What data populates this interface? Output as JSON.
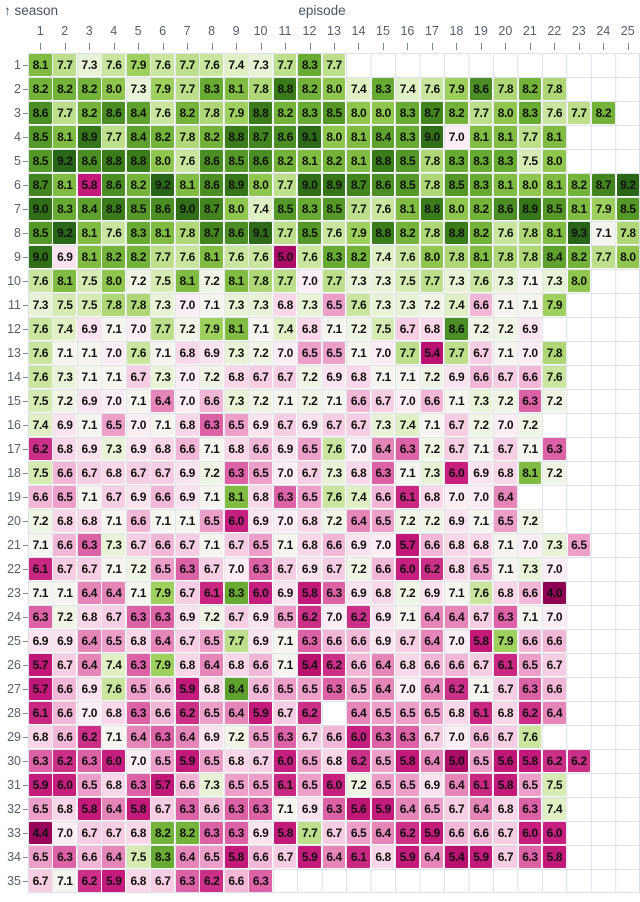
{
  "labels": {
    "season_arrow": "↑",
    "season": "season",
    "episode": "episode"
  },
  "colors": {
    "background": "#ffffff",
    "grid_line": "#dce1e7",
    "axis_word": "#49535e",
    "axis_number": "#56606b",
    "tick_mark": "#7d8791",
    "cell_text": "#101010",
    "high_green": "#276419",
    "mid_white": "#f7f5f2",
    "low_magenta": "#8e0152"
  },
  "chart_data": {
    "type": "heatmap",
    "x_axis": {
      "label": "episode",
      "ticks": [
        "1",
        "2",
        "3",
        "4",
        "5",
        "6",
        "7",
        "8",
        "9",
        "10",
        "11",
        "12",
        "13",
        "14",
        "15",
        "16",
        "17",
        "18",
        "19",
        "20",
        "21",
        "22",
        "23",
        "24",
        "25"
      ]
    },
    "y_axis": {
      "label": "season",
      "ticks": [
        "1",
        "2",
        "3",
        "4",
        "5",
        "6",
        "7",
        "8",
        "9",
        "10",
        "11",
        "12",
        "13",
        "14",
        "15",
        "16",
        "17",
        "18",
        "19",
        "20",
        "21",
        "22",
        "23",
        "24",
        "25",
        "26",
        "27",
        "28",
        "29",
        "30",
        "31",
        "32",
        "33",
        "34",
        "35"
      ]
    },
    "legend": "none",
    "grid": true,
    "value_format": "one_decimal",
    "colormap": {
      "stops": [
        [
          4.0,
          "#8e0152"
        ],
        [
          4.6,
          "#9c065c"
        ],
        [
          5.1,
          "#ae0d68"
        ],
        [
          5.6,
          "#c01677"
        ],
        [
          5.95,
          "#c51b7d"
        ],
        [
          6.12,
          "#c92983"
        ],
        [
          6.22,
          "#cc3088"
        ],
        [
          6.3,
          "#dd61a6"
        ],
        [
          6.42,
          "#e88cbc"
        ],
        [
          6.55,
          "#f0abd1"
        ],
        [
          6.7,
          "#f7cde3"
        ],
        [
          6.85,
          "#fadcec"
        ],
        [
          6.98,
          "#fcebf3"
        ],
        [
          7.08,
          "#f6f4f1"
        ],
        [
          7.22,
          "#eef5e2"
        ],
        [
          7.38,
          "#e2f1c8"
        ],
        [
          7.55,
          "#d0e9a7"
        ],
        [
          7.72,
          "#bade87"
        ],
        [
          7.92,
          "#9bce59"
        ],
        [
          8.1,
          "#7fbc41"
        ],
        [
          8.32,
          "#66a931"
        ],
        [
          8.55,
          "#4f9326"
        ],
        [
          8.8,
          "#3a7c1a"
        ],
        [
          9.05,
          "#2d6c16"
        ],
        [
          9.3,
          "#276419"
        ]
      ]
    },
    "values": [
      [
        8.1,
        7.7,
        7.3,
        7.6,
        7.9,
        7.6,
        7.7,
        7.6,
        7.4,
        7.3,
        7.7,
        8.3,
        7.7
      ],
      [
        8.2,
        8.2,
        8.2,
        8.0,
        7.3,
        7.9,
        7.7,
        8.3,
        8.1,
        7.8,
        8.8,
        8.2,
        8.0,
        7.4,
        8.3,
        7.4,
        7.6,
        7.9,
        8.6,
        7.8,
        8.2,
        7.8
      ],
      [
        8.6,
        7.7,
        8.2,
        8.6,
        8.4,
        7.6,
        8.2,
        7.8,
        7.9,
        8.8,
        8.2,
        8.3,
        8.5,
        8.0,
        8.0,
        8.3,
        8.7,
        8.2,
        7.7,
        8.0,
        8.3,
        7.6,
        7.7,
        8.2
      ],
      [
        8.5,
        8.1,
        8.9,
        7.7,
        8.4,
        8.2,
        7.8,
        8.2,
        8.8,
        8.7,
        8.6,
        9.1,
        8.0,
        8.1,
        8.4,
        8.3,
        9.0,
        7.0,
        8.1,
        8.1,
        7.7,
        8.1
      ],
      [
        8.5,
        9.2,
        8.6,
        8.8,
        8.8,
        8.0,
        7.6,
        8.6,
        8.5,
        8.6,
        8.2,
        8.1,
        8.2,
        8.1,
        8.8,
        8.5,
        7.8,
        8.3,
        8.3,
        8.3,
        7.5,
        8.0
      ],
      [
        8.7,
        8.1,
        5.8,
        8.6,
        8.2,
        9.2,
        8.1,
        8.6,
        8.9,
        8.0,
        7.7,
        9.0,
        8.9,
        8.7,
        8.6,
        8.5,
        7.8,
        8.5,
        8.3,
        8.1,
        8.0,
        8.1,
        8.2,
        8.7,
        9.2
      ],
      [
        9.0,
        8.3,
        8.4,
        8.8,
        8.5,
        8.6,
        9.0,
        8.7,
        8.0,
        7.4,
        8.5,
        8.3,
        8.5,
        7.7,
        7.6,
        8.1,
        8.8,
        8.0,
        8.2,
        8.6,
        8.9,
        8.5,
        8.1,
        7.9,
        8.5
      ],
      [
        8.5,
        9.2,
        8.1,
        7.6,
        8.3,
        8.1,
        7.8,
        8.7,
        8.6,
        9.1,
        7.7,
        8.5,
        7.6,
        7.9,
        8.8,
        8.2,
        7.8,
        8.8,
        8.2,
        7.6,
        7.8,
        8.1,
        9.3,
        7.1,
        7.8
      ],
      [
        9.0,
        6.9,
        8.1,
        8.2,
        8.2,
        7.7,
        7.6,
        8.1,
        7.6,
        7.6,
        5.0,
        7.6,
        8.3,
        8.2,
        7.4,
        7.6,
        8.0,
        7.8,
        8.1,
        7.8,
        7.8,
        8.4,
        8.2,
        7.7,
        8.0
      ],
      [
        7.6,
        8.1,
        7.5,
        8.0,
        7.2,
        7.5,
        8.1,
        7.2,
        8.1,
        7.8,
        7.7,
        7.0,
        7.7,
        7.3,
        7.3,
        7.5,
        7.7,
        7.3,
        7.6,
        7.3,
        7.1,
        7.3,
        8.0
      ],
      [
        7.3,
        7.5,
        7.5,
        7.8,
        7.8,
        7.3,
        7.0,
        7.1,
        7.3,
        7.3,
        6.8,
        7.3,
        6.5,
        7.6,
        7.3,
        7.3,
        7.2,
        7.4,
        6.6,
        7.1,
        7.1,
        7.9
      ],
      [
        7.6,
        7.4,
        6.9,
        7.1,
        7.0,
        7.7,
        7.2,
        7.9,
        8.1,
        7.1,
        7.4,
        6.8,
        7.1,
        7.2,
        7.5,
        6.7,
        6.8,
        8.6,
        7.2,
        7.2,
        6.9
      ],
      [
        7.6,
        7.1,
        7.1,
        7.0,
        7.6,
        7.1,
        6.8,
        6.9,
        7.3,
        7.2,
        7.0,
        6.5,
        6.5,
        7.1,
        7.0,
        7.7,
        5.4,
        7.7,
        6.7,
        7.1,
        7.0,
        7.8
      ],
      [
        7.6,
        7.3,
        7.1,
        7.1,
        6.7,
        7.3,
        7.0,
        7.2,
        6.8,
        6.7,
        6.7,
        7.2,
        6.9,
        6.8,
        7.1,
        7.1,
        7.2,
        6.9,
        6.6,
        6.7,
        6.6,
        7.6
      ],
      [
        7.5,
        7.2,
        6.9,
        7.0,
        7.1,
        6.4,
        7.0,
        6.6,
        7.3,
        7.2,
        7.1,
        7.2,
        7.1,
        6.6,
        6.7,
        7.0,
        6.6,
        7.1,
        7.3,
        7.2,
        6.3,
        7.2
      ],
      [
        7.4,
        6.9,
        7.1,
        6.5,
        7.0,
        7.1,
        6.8,
        6.3,
        6.5,
        6.9,
        6.7,
        6.9,
        6.7,
        6.7,
        7.3,
        7.4,
        7.1,
        6.7,
        7.2,
        7.0,
        7.2
      ],
      [
        6.2,
        6.8,
        6.9,
        7.3,
        6.9,
        6.8,
        6.6,
        7.1,
        6.8,
        6.6,
        6.9,
        6.5,
        7.6,
        7.0,
        6.4,
        6.3,
        7.2,
        6.7,
        7.1,
        6.7,
        7.1,
        6.3
      ],
      [
        7.5,
        6.6,
        6.7,
        6.8,
        6.7,
        6.7,
        6.9,
        7.2,
        6.3,
        6.5,
        7.0,
        6.7,
        7.3,
        6.8,
        6.3,
        7.1,
        7.3,
        6.0,
        6.9,
        6.8,
        8.1,
        7.2
      ],
      [
        6.6,
        6.5,
        7.1,
        6.7,
        6.9,
        6.6,
        6.9,
        7.1,
        8.1,
        6.8,
        6.3,
        6.5,
        7.6,
        7.4,
        6.6,
        6.1,
        6.8,
        7.0,
        7.0,
        6.4
      ],
      [
        7.2,
        6.8,
        6.8,
        7.1,
        6.6,
        7.1,
        7.1,
        6.5,
        6.0,
        6.9,
        7.0,
        6.8,
        7.2,
        6.4,
        6.5,
        7.2,
        7.2,
        6.9,
        7.1,
        6.5,
        7.2
      ],
      [
        7.1,
        6.6,
        6.3,
        7.3,
        6.7,
        6.6,
        6.7,
        7.1,
        6.7,
        6.5,
        7.1,
        6.8,
        6.6,
        6.9,
        7.0,
        5.7,
        6.6,
        6.8,
        6.8,
        7.1,
        7.0,
        7.3,
        6.5
      ],
      [
        6.1,
        6.7,
        6.7,
        7.1,
        7.2,
        6.5,
        6.3,
        6.7,
        7.0,
        6.3,
        6.7,
        6.9,
        6.7,
        7.2,
        6.6,
        6.0,
        6.2,
        6.8,
        6.5,
        7.1,
        7.3,
        7.0
      ],
      [
        7.1,
        7.1,
        6.4,
        6.4,
        7.1,
        7.9,
        6.7,
        6.1,
        8.3,
        6.0,
        6.9,
        5.8,
        6.3,
        6.9,
        6.8,
        7.2,
        6.9,
        7.1,
        7.6,
        6.8,
        6.6,
        4.0
      ],
      [
        6.3,
        7.2,
        6.8,
        6.7,
        6.3,
        6.3,
        6.9,
        7.2,
        6.7,
        6.9,
        6.5,
        6.2,
        7.0,
        6.2,
        6.9,
        7.1,
        6.4,
        6.4,
        6.7,
        6.3,
        7.1,
        7.0
      ],
      [
        6.9,
        6.9,
        6.4,
        6.5,
        6.8,
        6.4,
        6.7,
        6.5,
        7.7,
        6.9,
        7.1,
        6.3,
        6.6,
        6.6,
        6.9,
        6.7,
        6.4,
        7.0,
        5.8,
        7.9,
        6.6,
        6.6
      ],
      [
        5.7,
        6.7,
        6.4,
        7.4,
        6.3,
        7.9,
        6.8,
        6.4,
        6.8,
        6.6,
        7.1,
        5.4,
        6.2,
        6.6,
        6.4,
        6.8,
        6.6,
        6.6,
        6.7,
        6.1,
        6.5,
        6.7
      ],
      [
        5.7,
        6.6,
        6.9,
        7.6,
        6.5,
        6.6,
        5.9,
        6.8,
        8.4,
        6.6,
        6.5,
        6.5,
        6.3,
        6.5,
        6.4,
        7.0,
        6.4,
        6.2,
        7.1,
        6.7,
        6.3,
        6.6
      ],
      [
        6.1,
        6.6,
        7.0,
        6.8,
        6.3,
        6.6,
        6.2,
        6.5,
        6.4,
        5.9,
        6.7,
        6.2,
        null,
        6.4,
        6.5,
        6.5,
        6.5,
        6.8,
        6.1,
        6.8,
        6.2,
        6.4
      ],
      [
        6.8,
        6.6,
        6.2,
        7.1,
        6.4,
        6.3,
        6.4,
        6.9,
        7.2,
        6.5,
        6.3,
        6.7,
        6.6,
        6.0,
        6.3,
        6.3,
        6.7,
        7.0,
        6.6,
        6.7,
        7.6
      ],
      [
        6.3,
        6.2,
        6.3,
        6.0,
        7.0,
        6.5,
        5.9,
        6.5,
        6.8,
        6.7,
        6.0,
        6.5,
        6.8,
        6.2,
        6.5,
        5.8,
        6.4,
        5.0,
        6.5,
        5.6,
        5.8,
        6.2,
        6.2
      ],
      [
        5.9,
        6.0,
        6.5,
        6.8,
        6.3,
        5.7,
        6.6,
        7.3,
        6.5,
        6.5,
        6.1,
        6.5,
        6.0,
        7.2,
        6.5,
        6.5,
        6.9,
        6.4,
        6.1,
        5.8,
        6.5,
        7.5
      ],
      [
        6.5,
        6.8,
        5.8,
        6.4,
        5.8,
        6.7,
        6.3,
        6.6,
        6.3,
        6.3,
        7.1,
        6.9,
        6.3,
        5.6,
        5.9,
        6.4,
        6.5,
        6.7,
        6.4,
        6.8,
        6.3,
        7.4
      ],
      [
        4.4,
        7.0,
        6.7,
        6.7,
        6.8,
        8.2,
        8.2,
        6.3,
        6.3,
        6.9,
        5.8,
        7.7,
        6.7,
        6.5,
        6.4,
        6.2,
        5.9,
        6.6,
        6.6,
        6.7,
        6.0,
        6.0
      ],
      [
        6.5,
        6.3,
        6.6,
        6.4,
        7.5,
        8.3,
        6.4,
        6.5,
        5.8,
        6.6,
        6.7,
        5.9,
        6.4,
        6.1,
        6.8,
        5.9,
        6.4,
        5.4,
        5.9,
        6.7,
        6.3,
        5.8
      ],
      [
        6.7,
        7.1,
        6.2,
        5.9,
        6.8,
        6.7,
        6.3,
        6.2,
        6.6,
        6.3
      ]
    ]
  }
}
